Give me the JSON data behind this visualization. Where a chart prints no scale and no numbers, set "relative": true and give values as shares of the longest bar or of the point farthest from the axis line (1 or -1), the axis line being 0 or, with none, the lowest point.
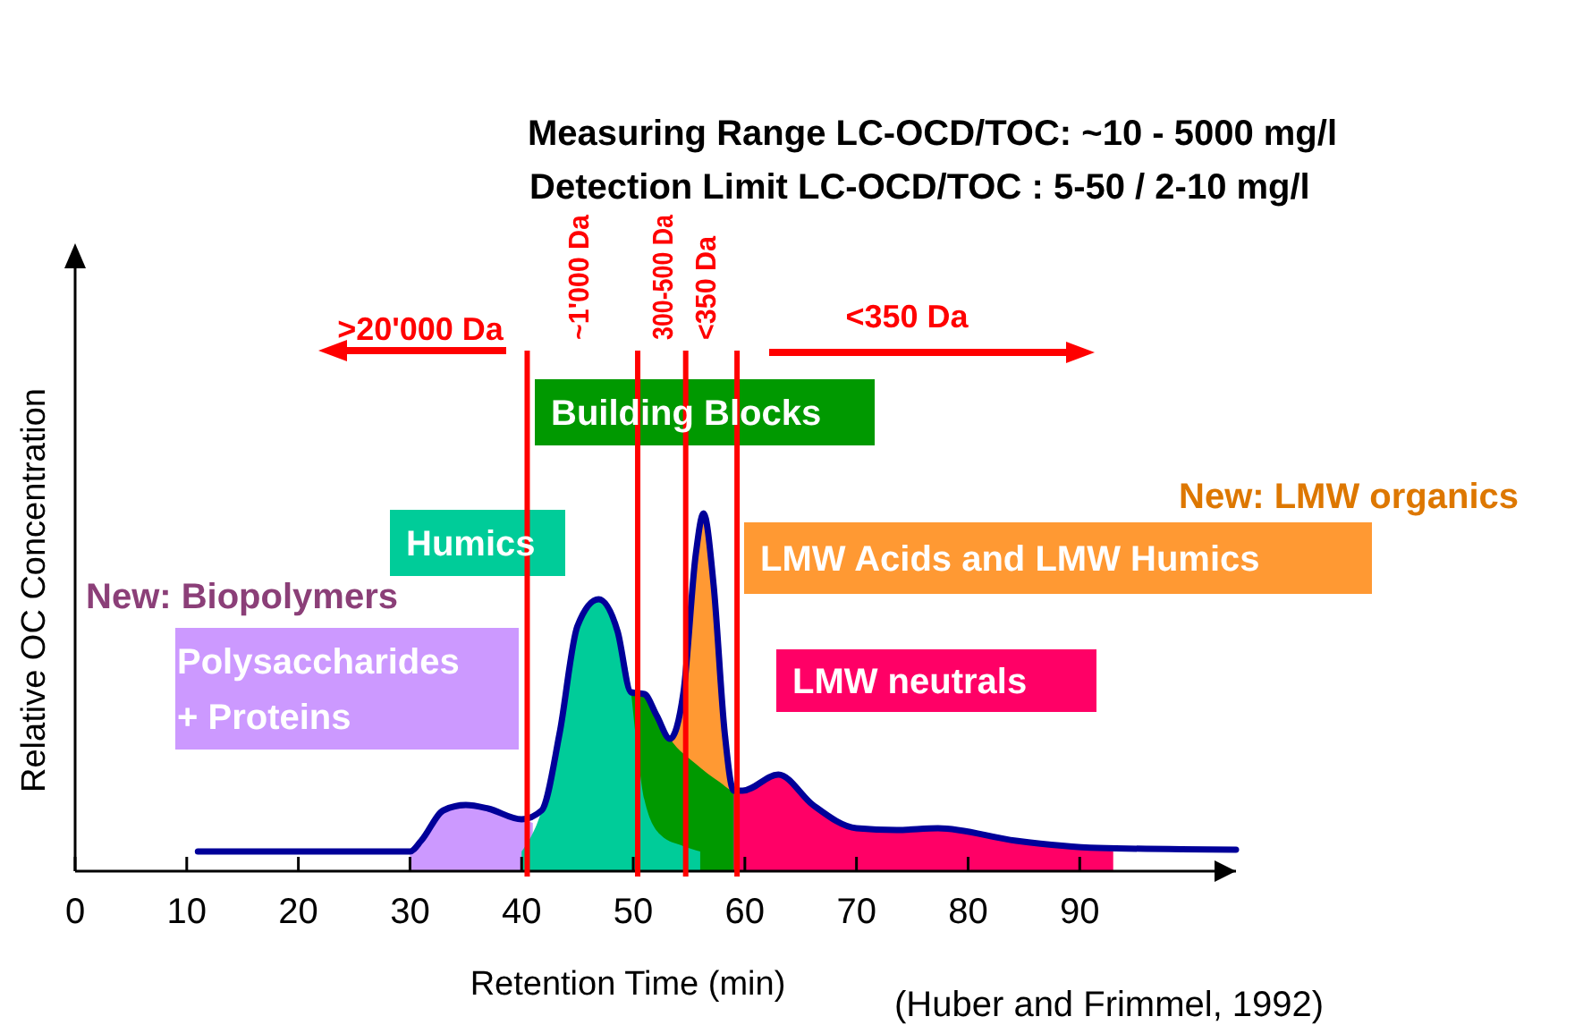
{
  "chart_data": {
    "type": "area",
    "title": "Measuring Range LC-OCD/TOC: ~10 - 5000 mg/l",
    "subtitle": "Detection Limit LC-OCD/TOC : 5-50 / 2-10 mg/l",
    "xlabel": "Retention Time (min)",
    "ylabel": "Relative OC Concentration",
    "relative": true,
    "xlim": [
      0,
      104
    ],
    "xticks": [
      0,
      10,
      20,
      30,
      40,
      50,
      60,
      70,
      80,
      90
    ],
    "grid": false,
    "legend": false,
    "series": [
      {
        "name": "Polysaccharides\n+ Proteins",
        "type": "area",
        "color": "#cc99ff",
        "x": [
          30,
          31,
          33,
          35,
          37,
          40,
          41
        ],
        "values": [
          0.055,
          0.085,
          0.17,
          0.185,
          0.175,
          0.145,
          0.135
        ]
      },
      {
        "name": "LMW Acids and LMW Humics",
        "type": "area",
        "color": "#ff9933",
        "x": [
          53.3,
          54.5,
          55.6,
          56.3,
          57.2,
          58.2,
          59
        ],
        "values": [
          0.37,
          0.5,
          0.885,
          1,
          0.8,
          0.385,
          0.225
        ]
      },
      {
        "name": "Building Blocks",
        "type": "area",
        "color": "#009900",
        "x": [
          49.8,
          51,
          52.1,
          53.3,
          55.6,
          57.7,
          59,
          59.8
        ],
        "values": [
          0.5,
          0.495,
          0.435,
          0.37,
          0.3,
          0.25,
          0.225,
          0.225
        ]
      },
      {
        "name": "Humics",
        "type": "area",
        "color": "#00cc99",
        "x": [
          40,
          41.8,
          43.4,
          45,
          46.9,
          48.6,
          49.8,
          50.2,
          51,
          52.5,
          54.5,
          56
        ],
        "values": [
          0.055,
          0.17,
          0.385,
          0.685,
          0.76,
          0.67,
          0.5,
          0.385,
          0.2,
          0.1,
          0.07,
          0.055
        ]
      },
      {
        "name": "LMW neutrals",
        "type": "area",
        "color": "#ff0066",
        "x": [
          59,
          59.8,
          63,
          66.1,
          70,
          73.6,
          77.3,
          84.3,
          91.6,
          93
        ],
        "values": [
          0.225,
          0.225,
          0.27,
          0.185,
          0.12,
          0.115,
          0.12,
          0.085,
          0.065,
          0.055
        ]
      },
      {
        "type": "line",
        "color": "#000099",
        "x": [
          11,
          30,
          31,
          33,
          35,
          37,
          40,
          41.8,
          43.4,
          45,
          46.9,
          48.6,
          49.8,
          51,
          52.1,
          53.3,
          54.5,
          55.6,
          56.3,
          57.2,
          58.2,
          59,
          59.8,
          63,
          66.1,
          70,
          73.6,
          77.3,
          84.3,
          91.6,
          104
        ],
        "values": [
          0.055,
          0.055,
          0.085,
          0.17,
          0.185,
          0.175,
          0.145,
          0.17,
          0.385,
          0.685,
          0.76,
          0.67,
          0.5,
          0.495,
          0.435,
          0.37,
          0.5,
          0.885,
          1,
          0.8,
          0.385,
          0.225,
          0.225,
          0.27,
          0.185,
          0.12,
          0.115,
          0.12,
          0.085,
          0.065,
          0.06
        ]
      }
    ],
    "ref_lines": [
      {
        "axis": "x",
        "value": 40.5,
        "color": "#ff0000"
      },
      {
        "axis": "x",
        "value": 50.4,
        "color": "#ff0000"
      },
      {
        "axis": "x",
        "value": 54.7,
        "color": "#ff0000"
      },
      {
        "axis": "x",
        "value": 59.3,
        "color": "#ff0000"
      }
    ],
    "annotations": [
      ">20'000 Da",
      "~1'000 Da",
      "300-500 Da",
      "<350 Da",
      "<350 Da",
      "New: Biopolymers",
      "New: LMW organics",
      "(Huber and Frimmel, 1992)"
    ]
  }
}
